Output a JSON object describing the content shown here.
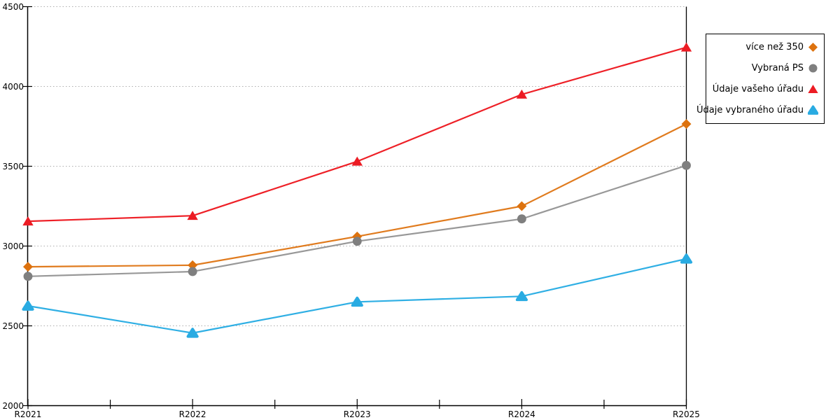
{
  "chart_data": {
    "type": "line",
    "title": "",
    "xlabel": "",
    "ylabel": "",
    "categories": [
      "R2021",
      "R2022",
      "R2023",
      "R2024",
      "R2025"
    ],
    "yticks": [
      "2000",
      "2500",
      "3000",
      "3500",
      "4000",
      "4500"
    ],
    "ylim": [
      2000,
      4500
    ],
    "grid": "horizontal-dotted",
    "legend_position": "outside-top-right",
    "axis_color": "#000000",
    "grid_color": "#adadad",
    "series": [
      {
        "name": "více než 350",
        "marker": "diamond",
        "color": "#dd720e",
        "line_color": "#e07b1e",
        "values": [
          2870,
          2880,
          3060,
          3250,
          3765
        ]
      },
      {
        "name": "Vybraná PS",
        "marker": "circle",
        "color": "#7f7f7f",
        "line_color": "#989898",
        "values": [
          2810,
          2840,
          3030,
          3170,
          3505
        ]
      },
      {
        "name": "Údaje vašeho úřadu",
        "marker": "triangle",
        "color": "#ec1c24",
        "line_color": "#ee2027",
        "values": [
          3155,
          3190,
          3530,
          3950,
          4245
        ]
      },
      {
        "name": "Údaje vybraného úřadu",
        "marker": "triangle-rounded",
        "color": "#29abe2",
        "line_color": "#2fafe4",
        "values": [
          2625,
          2455,
          2650,
          2685,
          2920
        ]
      }
    ]
  }
}
